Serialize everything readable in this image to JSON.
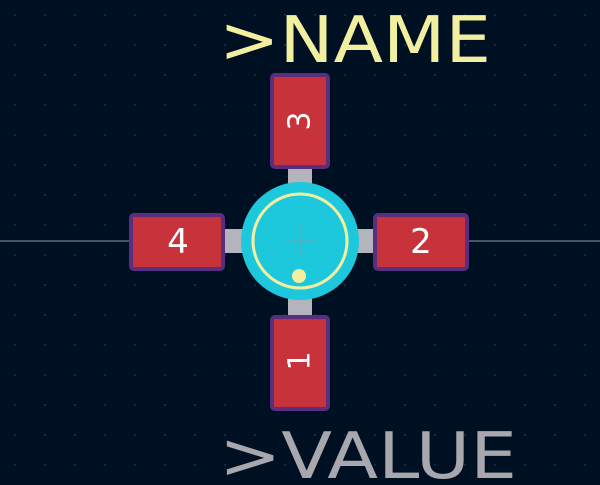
{
  "footprint": {
    "name_label": ">NAME",
    "value_label": ">VALUE",
    "pads": [
      {
        "number": "1",
        "rotated": true
      },
      {
        "number": "2",
        "rotated": false
      },
      {
        "number": "3",
        "rotated": true
      },
      {
        "number": "4",
        "rotated": false
      }
    ]
  },
  "colors": {
    "background": "#001023",
    "grid_dot": "#27394d",
    "crosshair": "#8c97a3",
    "pad_fill": "#c8323a",
    "pad_outline": "#5a2e7e",
    "via_fill": "#1ec8dc",
    "silkscreen": "#f2f0a0",
    "trace": "#b4b4bc",
    "value_text": "#a7a7ad"
  },
  "icons": {
    "pin1_marker": "filled-circle",
    "origin_marker": "crosshair"
  }
}
